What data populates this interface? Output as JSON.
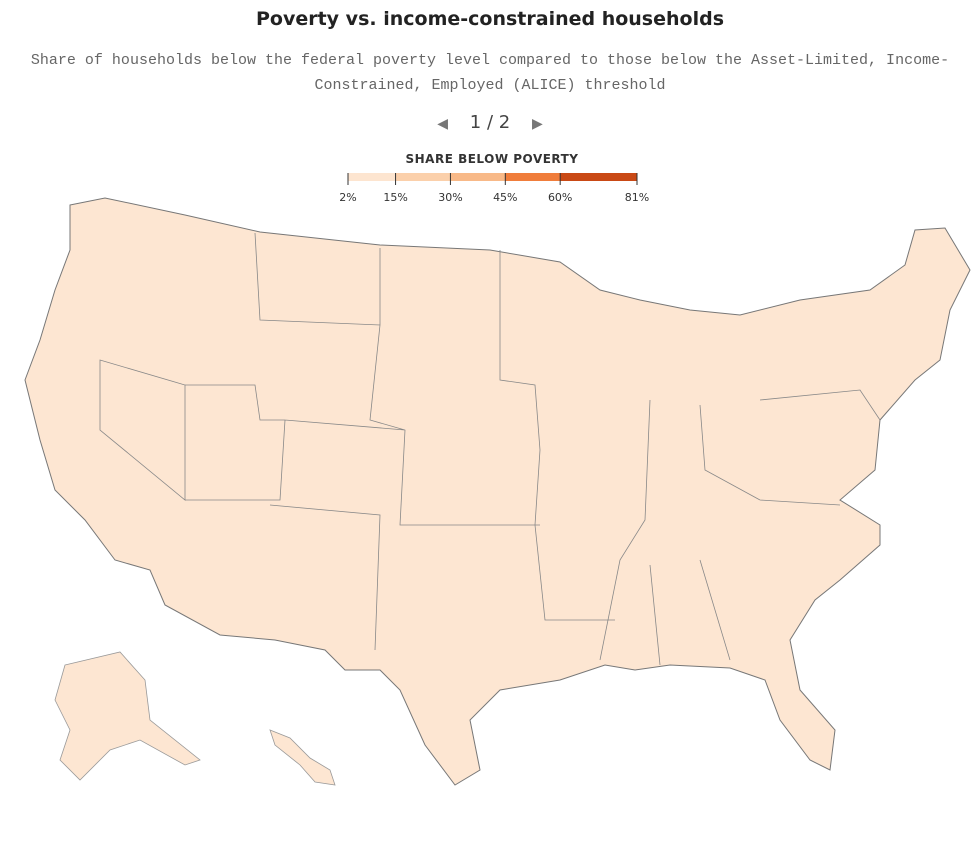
{
  "header": {
    "title": "Poverty vs. income-constrained households",
    "subtitle": "Share of households below the federal poverty level compared to those below the Asset-Limited, Income-Constrained, Employed (ALICE) threshold",
    "pager": "1 / 2"
  },
  "legend": {
    "title": "SHARE BELOW POVERTY",
    "ticks": [
      {
        "value": 2,
        "label": "2%"
      },
      {
        "value": 15,
        "label": "15%"
      },
      {
        "value": 30,
        "label": "30%"
      },
      {
        "value": 45,
        "label": "45%"
      },
      {
        "value": 60,
        "label": "60%"
      },
      {
        "value": 81,
        "label": "81%"
      }
    ],
    "colors": [
      "#fde5d0",
      "#fbd0ab",
      "#f8b988",
      "#f07d3b",
      "#c94915"
    ]
  }
}
